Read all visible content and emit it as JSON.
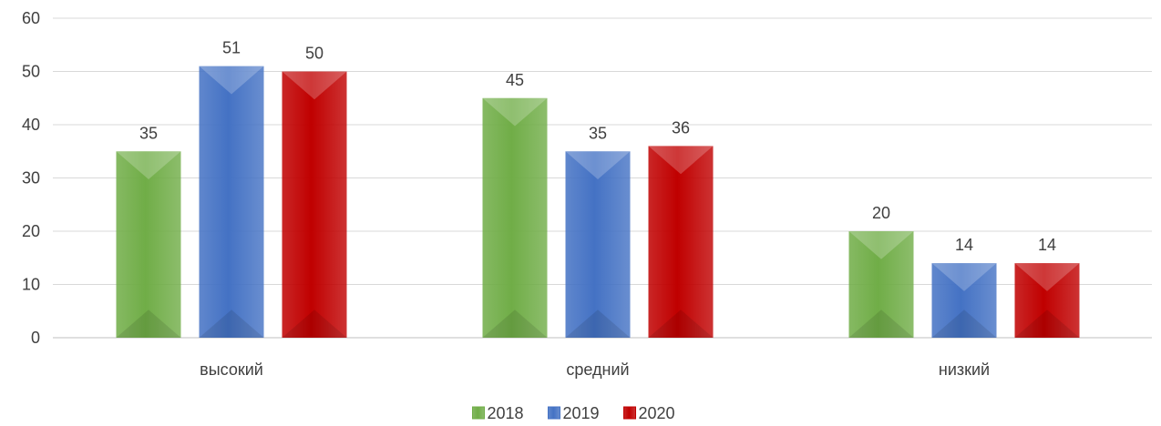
{
  "chart_data": {
    "type": "bar",
    "title": "",
    "xlabel": "",
    "ylabel": "",
    "categories": [
      "высокий",
      "средний",
      "низкий"
    ],
    "series": [
      {
        "name": "2018",
        "values": [
          35,
          45,
          20
        ],
        "color": "#70AD47"
      },
      {
        "name": "2019",
        "values": [
          51,
          35,
          14
        ],
        "color": "#4472C4"
      },
      {
        "name": "2020",
        "values": [
          50,
          36,
          14
        ],
        "color": "#C00000"
      }
    ],
    "ylim": [
      0,
      60
    ],
    "yticks": [
      0,
      10,
      20,
      30,
      40,
      50,
      60
    ],
    "grid": true,
    "legend_position": "bottom",
    "data_labels": true
  }
}
